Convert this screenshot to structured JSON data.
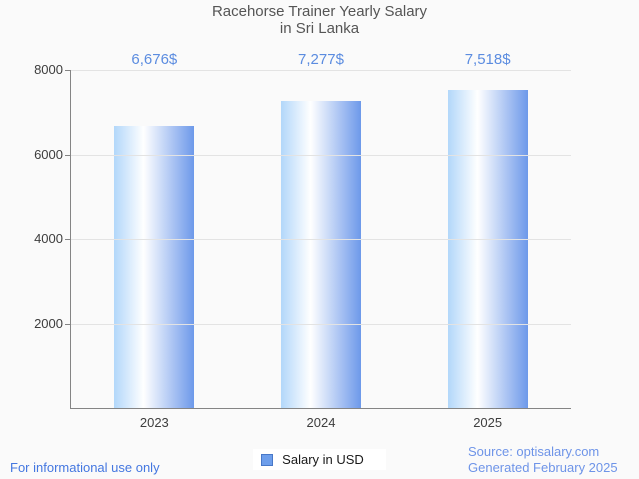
{
  "title": {
    "line1": "Racehorse Trainer Yearly Salary",
    "line2": "in Sri Lanka"
  },
  "legend": {
    "label": "Salary in USD"
  },
  "footer": {
    "disclaimer": "For informational use only",
    "source": "Source: optisalary.com",
    "generated": "Generated February 2025"
  },
  "chart_data": {
    "type": "bar",
    "title": "Racehorse Trainer Yearly Salary in Sri Lanka",
    "categories": [
      "2023",
      "2024",
      "2025"
    ],
    "series": [
      {
        "name": "Salary in USD",
        "values": [
          6676,
          7277,
          7518
        ]
      }
    ],
    "value_labels": [
      "6,676$",
      "7,277$",
      "7,518$"
    ],
    "xlabel": "",
    "ylabel": "",
    "ylim": [
      0,
      8000
    ],
    "yticks": [
      2000,
      4000,
      6000,
      8000
    ],
    "grid": true,
    "legend_position": "bottom",
    "colors": {
      "bar_gradient": [
        "#b2d7fa",
        "#ffffff",
        "#6d99ea"
      ],
      "value_label": "#5b8ce0",
      "disclaimer_text": "#4477e0",
      "source_text": "#6e94e8",
      "legend_swatch_fill": "#6d9eeb",
      "legend_swatch_border": "#4878c8",
      "grid_line": "#e3e3e3",
      "axis_line": "#848484",
      "axis_text": "#3d3d3d",
      "title_text": "#555555",
      "background": "#fafafa"
    }
  }
}
